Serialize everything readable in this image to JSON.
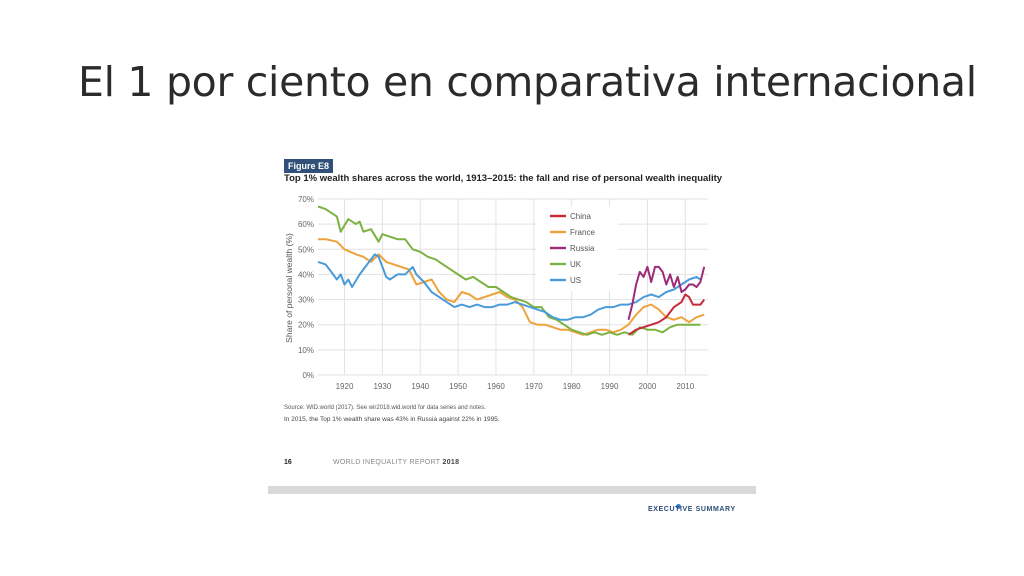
{
  "slide": {
    "title": "El 1 por ciento en comparativa internacional"
  },
  "figure": {
    "tag": "Figure E8",
    "title": "Top 1% wealth shares across the world, 1913–2015: the fall and rise of personal wealth inequality",
    "source": "Source: WID.world (2017). See wir2018.wid.world for data series and notes.",
    "note": "In 2015, the Top 1% wealth share was 43% in Russia against 22% in 1995.",
    "page_number": "16",
    "report_name": "WORLD INEQUALITY REPORT",
    "report_year": "2018",
    "footer_label": "EXECUTIVE SUMMARY"
  },
  "chart_data": {
    "type": "line",
    "title": "Top 1% wealth shares across the world, 1913–2015: the fall and rise of personal wealth inequality",
    "xlabel": "",
    "ylabel": "Share of personal wealth (%)",
    "xlim": [
      1913,
      2016
    ],
    "ylim": [
      0,
      70
    ],
    "xticks": [
      1920,
      1930,
      1940,
      1950,
      1960,
      1970,
      1980,
      1990,
      2000,
      2010
    ],
    "yticks": [
      "0%",
      "10%",
      "20%",
      "30%",
      "40%",
      "50%",
      "60%",
      "70%"
    ],
    "grid": true,
    "legend_position": "top-right",
    "series": [
      {
        "name": "China",
        "color": "#c62a37",
        "points": [
          [
            1995,
            16
          ],
          [
            1997,
            18
          ],
          [
            1999,
            19
          ],
          [
            2001,
            20
          ],
          [
            2003,
            21
          ],
          [
            2005,
            23
          ],
          [
            2007,
            27
          ],
          [
            2009,
            29
          ],
          [
            2010,
            32
          ],
          [
            2011,
            31
          ],
          [
            2012,
            28
          ],
          [
            2013,
            28
          ],
          [
            2014,
            28
          ],
          [
            2015,
            30
          ]
        ]
      },
      {
        "name": "France",
        "color": "#eda23b",
        "points": [
          [
            1913,
            54
          ],
          [
            1915,
            54
          ],
          [
            1918,
            53
          ],
          [
            1920,
            50
          ],
          [
            1923,
            48
          ],
          [
            1925,
            47
          ],
          [
            1927,
            45
          ],
          [
            1929,
            48
          ],
          [
            1931,
            45
          ],
          [
            1933,
            44
          ],
          [
            1935,
            43
          ],
          [
            1937,
            42
          ],
          [
            1939,
            36
          ],
          [
            1941,
            37
          ],
          [
            1943,
            38
          ],
          [
            1945,
            33
          ],
          [
            1947,
            30
          ],
          [
            1949,
            29
          ],
          [
            1951,
            33
          ],
          [
            1953,
            32
          ],
          [
            1955,
            30
          ],
          [
            1957,
            31
          ],
          [
            1959,
            32
          ],
          [
            1961,
            33
          ],
          [
            1963,
            31
          ],
          [
            1965,
            30
          ],
          [
            1967,
            27
          ],
          [
            1969,
            21
          ],
          [
            1971,
            20
          ],
          [
            1973,
            20
          ],
          [
            1975,
            19
          ],
          [
            1977,
            18
          ],
          [
            1979,
            18
          ],
          [
            1981,
            17
          ],
          [
            1983,
            16
          ],
          [
            1985,
            17
          ],
          [
            1987,
            18
          ],
          [
            1989,
            18
          ],
          [
            1991,
            17
          ],
          [
            1993,
            18
          ],
          [
            1995,
            20
          ],
          [
            1997,
            24
          ],
          [
            1999,
            27
          ],
          [
            2001,
            28
          ],
          [
            2003,
            26
          ],
          [
            2005,
            23
          ],
          [
            2007,
            22
          ],
          [
            2009,
            23
          ],
          [
            2011,
            21
          ],
          [
            2013,
            23
          ],
          [
            2015,
            24
          ]
        ]
      },
      {
        "name": "Russia",
        "color": "#9c2b78",
        "points": [
          [
            1995,
            22
          ],
          [
            1996,
            28
          ],
          [
            1997,
            36
          ],
          [
            1998,
            41
          ],
          [
            1999,
            39
          ],
          [
            2000,
            43
          ],
          [
            2001,
            37
          ],
          [
            2002,
            43
          ],
          [
            2003,
            43
          ],
          [
            2004,
            41
          ],
          [
            2005,
            36
          ],
          [
            2006,
            40
          ],
          [
            2007,
            35
          ],
          [
            2008,
            39
          ],
          [
            2009,
            33
          ],
          [
            2010,
            34
          ],
          [
            2011,
            36
          ],
          [
            2012,
            36
          ],
          [
            2013,
            35
          ],
          [
            2014,
            37
          ],
          [
            2015,
            43
          ]
        ]
      },
      {
        "name": "UK",
        "color": "#7bb241",
        "points": [
          [
            1913,
            67
          ],
          [
            1915,
            66
          ],
          [
            1918,
            63
          ],
          [
            1919,
            57
          ],
          [
            1921,
            62
          ],
          [
            1923,
            60
          ],
          [
            1924,
            61
          ],
          [
            1925,
            57
          ],
          [
            1927,
            58
          ],
          [
            1929,
            53
          ],
          [
            1930,
            56
          ],
          [
            1932,
            55
          ],
          [
            1934,
            54
          ],
          [
            1936,
            54
          ],
          [
            1938,
            50
          ],
          [
            1940,
            49
          ],
          [
            1942,
            47
          ],
          [
            1944,
            46
          ],
          [
            1946,
            44
          ],
          [
            1948,
            42
          ],
          [
            1950,
            40
          ],
          [
            1952,
            38
          ],
          [
            1954,
            39
          ],
          [
            1956,
            37
          ],
          [
            1958,
            35
          ],
          [
            1960,
            35
          ],
          [
            1962,
            33
          ],
          [
            1964,
            31
          ],
          [
            1966,
            30
          ],
          [
            1968,
            29
          ],
          [
            1970,
            27
          ],
          [
            1972,
            27
          ],
          [
            1974,
            23
          ],
          [
            1976,
            22
          ],
          [
            1978,
            20
          ],
          [
            1980,
            18
          ],
          [
            1982,
            17
          ],
          [
            1984,
            16
          ],
          [
            1986,
            17
          ],
          [
            1988,
            16
          ],
          [
            1990,
            17
          ],
          [
            1992,
            16
          ],
          [
            1994,
            17
          ],
          [
            1996,
            16
          ],
          [
            1998,
            19
          ],
          [
            2000,
            18
          ],
          [
            2002,
            18
          ],
          [
            2004,
            17
          ],
          [
            2006,
            19
          ],
          [
            2008,
            20
          ],
          [
            2010,
            20
          ],
          [
            2012,
            20
          ],
          [
            2014,
            20
          ]
        ]
      },
      {
        "name": "US",
        "color": "#4a9bd9",
        "points": [
          [
            1913,
            45
          ],
          [
            1915,
            44
          ],
          [
            1917,
            40
          ],
          [
            1918,
            38
          ],
          [
            1919,
            40
          ],
          [
            1920,
            36
          ],
          [
            1921,
            38
          ],
          [
            1922,
            35
          ],
          [
            1924,
            40
          ],
          [
            1926,
            44
          ],
          [
            1928,
            48
          ],
          [
            1929,
            47
          ],
          [
            1931,
            39
          ],
          [
            1932,
            38
          ],
          [
            1934,
            40
          ],
          [
            1936,
            40
          ],
          [
            1938,
            43
          ],
          [
            1939,
            40
          ],
          [
            1941,
            37
          ],
          [
            1943,
            33
          ],
          [
            1945,
            31
          ],
          [
            1947,
            29
          ],
          [
            1949,
            27
          ],
          [
            1951,
            28
          ],
          [
            1953,
            27
          ],
          [
            1955,
            28
          ],
          [
            1957,
            27
          ],
          [
            1959,
            27
          ],
          [
            1961,
            28
          ],
          [
            1963,
            28
          ],
          [
            1965,
            29
          ],
          [
            1967,
            28
          ],
          [
            1969,
            27
          ],
          [
            1971,
            26
          ],
          [
            1973,
            25
          ],
          [
            1975,
            23
          ],
          [
            1977,
            22
          ],
          [
            1979,
            22
          ],
          [
            1981,
            23
          ],
          [
            1983,
            23
          ],
          [
            1985,
            24
          ],
          [
            1987,
            26
          ],
          [
            1989,
            27
          ],
          [
            1991,
            27
          ],
          [
            1993,
            28
          ],
          [
            1995,
            28
          ],
          [
            1997,
            29
          ],
          [
            1999,
            31
          ],
          [
            2001,
            32
          ],
          [
            2003,
            31
          ],
          [
            2005,
            33
          ],
          [
            2007,
            34
          ],
          [
            2009,
            36
          ],
          [
            2011,
            38
          ],
          [
            2013,
            39
          ],
          [
            2014,
            38
          ]
        ]
      }
    ]
  }
}
